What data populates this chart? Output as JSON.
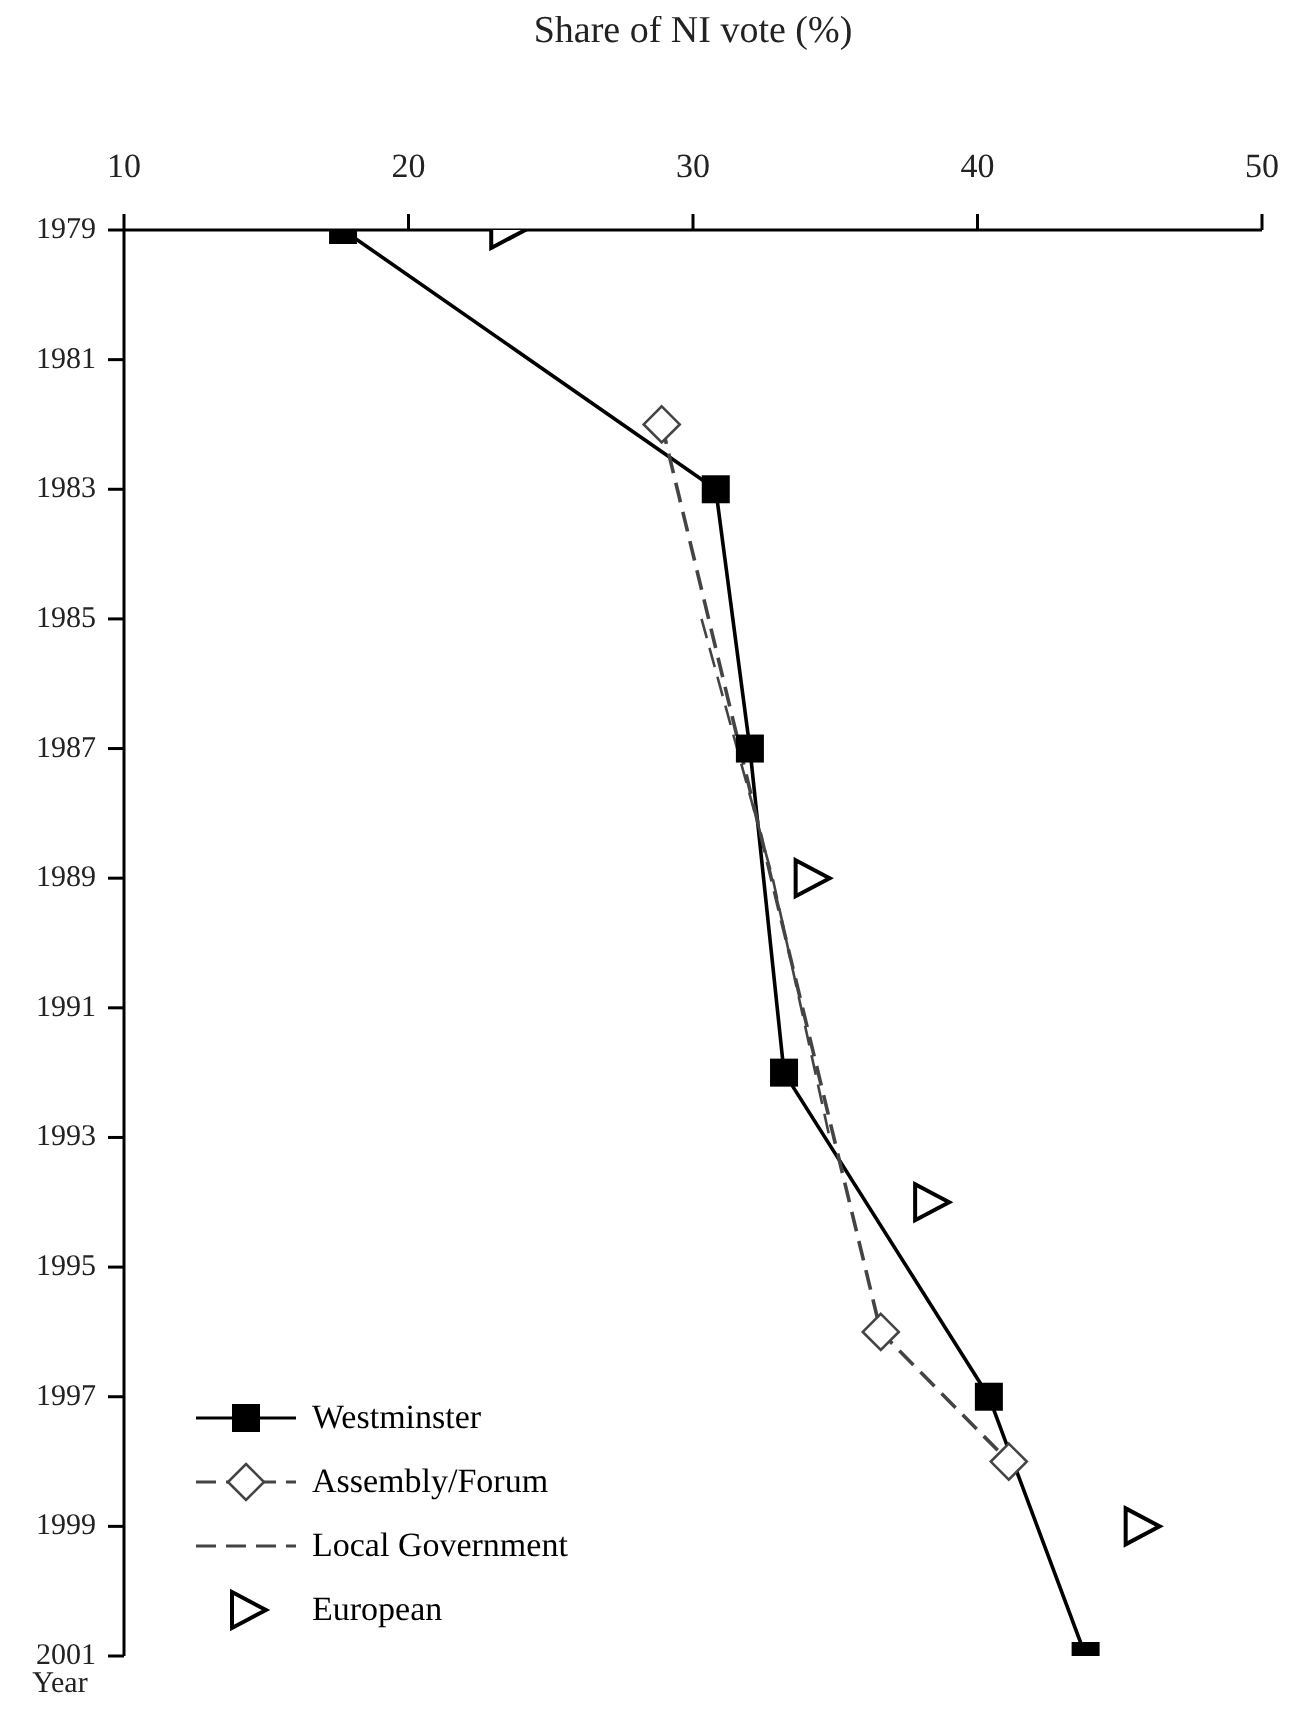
{
  "chart_data": {
    "type": "line",
    "orientation": "horizontal",
    "xlabel": "Share of NI vote (%)",
    "ylabel": "Year",
    "xlim": [
      10,
      50
    ],
    "xticks": [
      10,
      20,
      30,
      40,
      50
    ],
    "ylim": [
      2001,
      1979
    ],
    "yticks": [
      1979,
      1981,
      1983,
      1985,
      1987,
      1989,
      1991,
      1993,
      1995,
      1997,
      1999,
      2001
    ],
    "grid": false,
    "legend": "bottom left",
    "series": [
      {
        "name": "Westminster",
        "type": "line",
        "color": "#000000",
        "marker": "square",
        "line_style": "solid",
        "x": [
          1979,
          1983,
          1987,
          1992,
          1997,
          2001
        ],
        "values": [
          17.7,
          30.8,
          32.0,
          33.2,
          40.4,
          43.8
        ]
      },
      {
        "name": "Assembly/Forum",
        "type": "line",
        "color": "#444444",
        "marker": "diamond",
        "line_style": "dashed",
        "x": [
          1982,
          1996,
          1998
        ],
        "values": [
          28.9,
          36.6,
          41.1
        ]
      },
      {
        "name": "Local Government",
        "type": "line",
        "color": "#444444",
        "marker": "none",
        "line_style": "dashed",
        "x": [
          1985,
          1989,
          1993
        ],
        "values": [
          30.3,
          32.8,
          34.8
        ]
      },
      {
        "name": "European",
        "type": "scatter",
        "color": "#000000",
        "marker": "triangle",
        "x": [
          1979,
          1989,
          1994,
          1999
        ],
        "values": [
          23.4,
          34.1,
          38.3,
          45.7
        ]
      }
    ]
  }
}
